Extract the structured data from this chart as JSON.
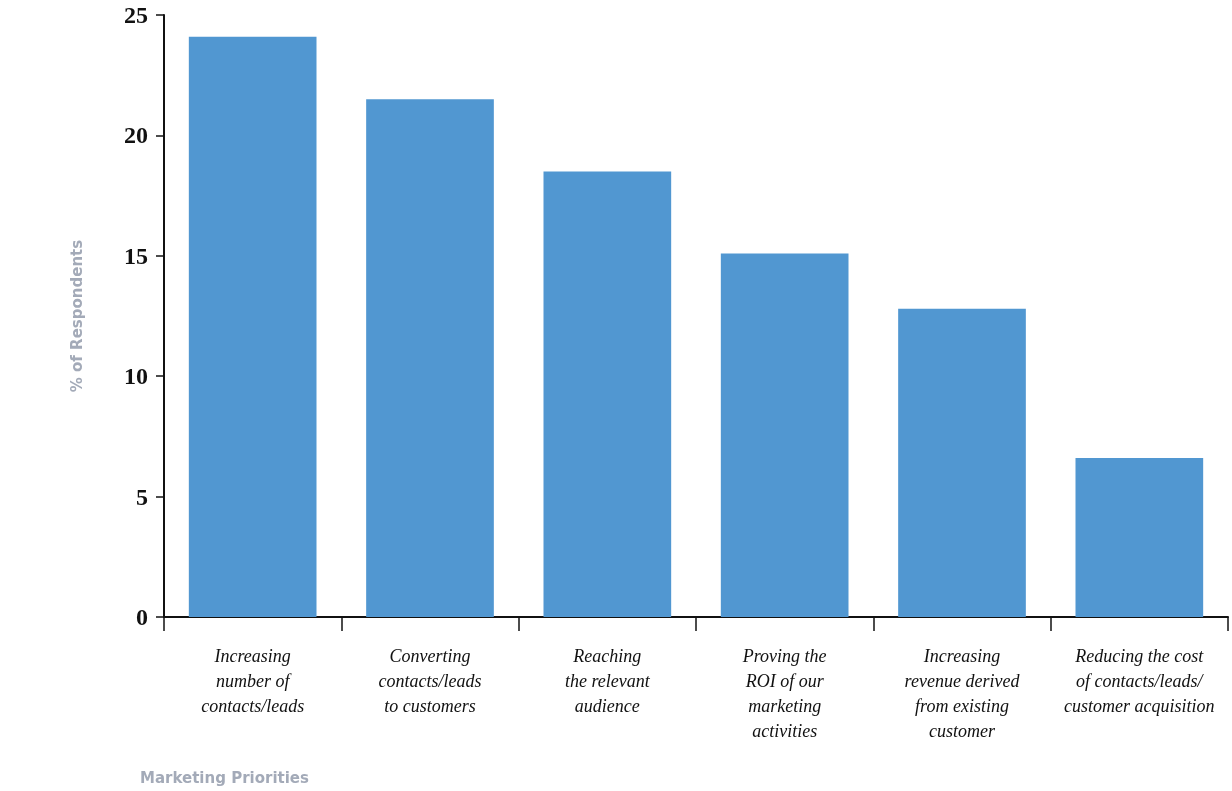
{
  "chart_data": {
    "type": "bar",
    "xlabel": "Marketing Priorities",
    "ylabel": "% of Respondents",
    "categories": [
      "Increasing\nnumber of\ncontacts/leads",
      "Converting\ncontacts/leads\nto customers",
      "Reaching\nthe relevant\naudience",
      "Proving the\nROI of our\nmarketing\nactivities",
      "Increasing\nrevenue derived\nfrom existing\ncustomer",
      "Reducing the cost\nof contacts/leads/\ncustomer acquisition"
    ],
    "values": [
      24.1,
      21.5,
      18.5,
      15.1,
      12.8,
      6.6
    ],
    "color": "#5197d1",
    "ylim": [
      0,
      25
    ],
    "yticks": [
      0,
      5,
      10,
      15,
      20,
      25
    ],
    "grid": false
  }
}
